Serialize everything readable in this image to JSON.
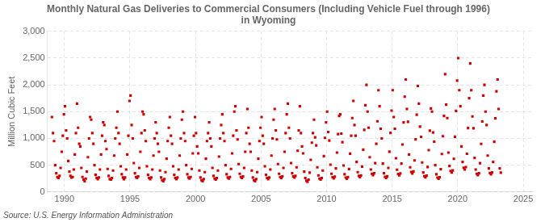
{
  "chart_data": {
    "type": "scatter",
    "title": "Monthly Natural Gas Deliveries to Commercial Consumers (Including Vehicle Fuel through 1996)\nin Wyoming",
    "ylabel": "Million Cubic Feet",
    "source": "Source: U.S. Energy Information Administration",
    "color": "#cc0000",
    "marker": "square",
    "grid": true,
    "xlim": [
      1988.7,
      2025.8
    ],
    "xticks": [
      1990,
      1995,
      2000,
      2005,
      2010,
      2015,
      2020,
      2025
    ],
    "ylim": [
      0,
      3000
    ],
    "yticks": [
      0,
      500,
      {
        "value": 1000,
        "label": "1,000"
      },
      {
        "value": 1500,
        "label": "1,500"
      },
      {
        "value": 2000,
        "label": "2,000"
      },
      {
        "value": 2500,
        "label": "2,500"
      },
      {
        "value": 3000,
        "label": "3,000"
      }
    ],
    "x": [
      1989.0416666666667,
      1989.125,
      1989.2083333333333,
      1989.2916666666667,
      1989.375,
      1989.4583333333333,
      1989.5416666666667,
      1989.625,
      1989.7083333333333,
      1989.7916666666667,
      1989.875,
      1989.9583333333333,
      1990.0416666666667,
      1990.125,
      1990.2083333333333,
      1990.2916666666667,
      1990.375,
      1990.4583333333333,
      1990.5416666666667,
      1990.625,
      1990.7083333333333,
      1990.7916666666667,
      1990.875,
      1990.9583333333333,
      1991.0416666666667,
      1991.125,
      1991.2083333333333,
      1991.2916666666667,
      1991.375,
      1991.4583333333333,
      1991.5416666666667,
      1991.625,
      1991.7083333333333,
      1991.7916666666667,
      1991.875,
      1991.9583333333333,
      1992.0416666666667,
      1992.125,
      1992.2083333333333,
      1992.2916666666667,
      1992.375,
      1992.4583333333333,
      1992.5416666666667,
      1992.625,
      1992.7083333333333,
      1992.7916666666667,
      1992.875,
      1992.9583333333333,
      1993.0416666666667,
      1993.125,
      1993.2083333333333,
      1993.2916666666667,
      1993.375,
      1993.4583333333333,
      1993.5416666666667,
      1993.625,
      1993.7083333333333,
      1993.7916666666667,
      1993.875,
      1993.9583333333333,
      1994.0416666666667,
      1994.125,
      1994.2083333333333,
      1994.2916666666667,
      1994.375,
      1994.4583333333333,
      1994.5416666666667,
      1994.625,
      1994.7083333333333,
      1994.7916666666667,
      1994.875,
      1994.9583333333333,
      1995.0416666666667,
      1995.125,
      1995.2083333333333,
      1995.2916666666667,
      1995.375,
      1995.4583333333333,
      1995.5416666666667,
      1995.625,
      1995.7083333333333,
      1995.7916666666667,
      1995.875,
      1995.9583333333333,
      1996.0416666666667,
      1996.125,
      1996.2083333333333,
      1996.2916666666667,
      1996.375,
      1996.4583333333333,
      1996.5416666666667,
      1996.625,
      1996.7083333333333,
      1996.7916666666667,
      1996.875,
      1996.9583333333333,
      1997.0416666666667,
      1997.125,
      1997.2083333333333,
      1997.2916666666667,
      1997.375,
      1997.4583333333333,
      1997.5416666666667,
      1997.625,
      1997.7083333333333,
      1997.7916666666667,
      1997.875,
      1997.9583333333333,
      1998.0416666666667,
      1998.125,
      1998.2083333333333,
      1998.2916666666667,
      1998.375,
      1998.4583333333333,
      1998.5416666666667,
      1998.625,
      1998.7083333333333,
      1998.7916666666667,
      1998.875,
      1998.9583333333333,
      1999.0416666666667,
      1999.125,
      1999.2083333333333,
      1999.2916666666667,
      1999.375,
      1999.4583333333333,
      1999.5416666666667,
      1999.625,
      1999.7083333333333,
      1999.7916666666667,
      1999.875,
      1999.9583333333333,
      2000.0416666666667,
      2000.125,
      2000.2083333333333,
      2000.2916666666667,
      2000.375,
      2000.4583333333333,
      2000.5416666666667,
      2000.625,
      2000.7083333333333,
      2000.7916666666667,
      2000.875,
      2000.9583333333333,
      2001.0416666666667,
      2001.125,
      2001.2083333333333,
      2001.2916666666667,
      2001.375,
      2001.4583333333333,
      2001.5416666666667,
      2001.625,
      2001.7083333333333,
      2001.7916666666667,
      2001.875,
      2001.9583333333333,
      2002.0416666666667,
      2002.125,
      2002.2083333333333,
      2002.2916666666667,
      2002.375,
      2002.4583333333333,
      2002.5416666666667,
      2002.625,
      2002.7083333333333,
      2002.7916666666667,
      2002.875,
      2002.9583333333333,
      2003.0416666666667,
      2003.125,
      2003.2083333333333,
      2003.2916666666667,
      2003.375,
      2003.4583333333333,
      2003.5416666666667,
      2003.625,
      2003.7083333333333,
      2003.7916666666667,
      2003.875,
      2003.9583333333333,
      2004.0416666666667,
      2004.125,
      2004.2083333333333,
      2004.2916666666667,
      2004.375,
      2004.4583333333333,
      2004.5416666666667,
      2004.625,
      2004.7083333333333,
      2004.7916666666667,
      2004.875,
      2004.9583333333333,
      2005.0416666666667,
      2005.125,
      2005.2083333333333,
      2005.2916666666667,
      2005.375,
      2005.4583333333333,
      2005.5416666666667,
      2005.625,
      2005.7083333333333,
      2005.7916666666667,
      2005.875,
      2005.9583333333333,
      2006.0416666666667,
      2006.125,
      2006.2083333333333,
      2006.2916666666667,
      2006.375,
      2006.4583333333333,
      2006.5416666666667,
      2006.625,
      2006.7083333333333,
      2006.7916666666667,
      2006.875,
      2006.9583333333333,
      2007.0416666666667,
      2007.125,
      2007.2083333333333,
      2007.2916666666667,
      2007.375,
      2007.4583333333333,
      2007.5416666666667,
      2007.625,
      2007.7083333333333,
      2007.7916666666667,
      2007.875,
      2007.9583333333333,
      2008.0416666666667,
      2008.125,
      2008.2083333333333,
      2008.2916666666667,
      2008.375,
      2008.4583333333333,
      2008.5416666666667,
      2008.625,
      2008.7083333333333,
      2008.7916666666667,
      2008.875,
      2008.9583333333333,
      2009.0416666666667,
      2009.125,
      2009.2083333333333,
      2009.2916666666667,
      2009.375,
      2009.4583333333333,
      2009.5416666666667,
      2009.625,
      2009.7083333333333,
      2009.7916666666667,
      2009.875,
      2009.9583333333333,
      2010.0416666666667,
      2010.125,
      2010.2083333333333,
      2010.2916666666667,
      2010.375,
      2010.4583333333333,
      2010.5416666666667,
      2010.625,
      2010.7083333333333,
      2010.7916666666667,
      2010.875,
      2010.9583333333333,
      2011.0416666666667,
      2011.125,
      2011.2083333333333,
      2011.2916666666667,
      2011.375,
      2011.4583333333333,
      2011.5416666666667,
      2011.625,
      2011.7083333333333,
      2011.7916666666667,
      2011.875,
      2011.9583333333333,
      2012.0416666666667,
      2012.125,
      2012.2083333333333,
      2012.2916666666667,
      2012.375,
      2012.4583333333333,
      2012.5416666666667,
      2012.625,
      2012.7083333333333,
      2012.7916666666667,
      2012.875,
      2012.9583333333333,
      2013.0416666666667,
      2013.125,
      2013.2083333333333,
      2013.2916666666667,
      2013.375,
      2013.4583333333333,
      2013.5416666666667,
      2013.625,
      2013.7083333333333,
      2013.7916666666667,
      2013.875,
      2013.9583333333333,
      2014.0416666666667,
      2014.125,
      2014.2083333333333,
      2014.2916666666667,
      2014.375,
      2014.4583333333333,
      2014.5416666666667,
      2014.625,
      2014.7083333333333,
      2014.7916666666667,
      2014.875,
      2014.9583333333333,
      2015.0416666666667,
      2015.125,
      2015.2083333333333,
      2015.2916666666667,
      2015.375,
      2015.4583333333333,
      2015.5416666666667,
      2015.625,
      2015.7083333333333,
      2015.7916666666667,
      2015.875,
      2015.9583333333333,
      2016.0416666666667,
      2016.125,
      2016.2083333333333,
      2016.2916666666667,
      2016.375,
      2016.4583333333333,
      2016.5416666666667,
      2016.625,
      2016.7083333333333,
      2016.7916666666667,
      2016.875,
      2016.9583333333333,
      2017.0416666666667,
      2017.125,
      2017.2083333333333,
      2017.2916666666667,
      2017.375,
      2017.4583333333333,
      2017.5416666666667,
      2017.625,
      2017.7083333333333,
      2017.7916666666667,
      2017.875,
      2017.9583333333333,
      2018.0416666666667,
      2018.125,
      2018.2083333333333,
      2018.2916666666667,
      2018.375,
      2018.4583333333333,
      2018.5416666666667,
      2018.625,
      2018.7083333333333,
      2018.7916666666667,
      2018.875,
      2018.9583333333333,
      2019.0416666666667,
      2019.125,
      2019.2083333333333,
      2019.2916666666667,
      2019.375,
      2019.4583333333333,
      2019.5416666666667,
      2019.625,
      2019.7083333333333,
      2019.7916666666667,
      2019.875,
      2019.9583333333333,
      2020.0416666666667,
      2020.125,
      2020.2083333333333,
      2020.2916666666667,
      2020.375,
      2020.4583333333333,
      2020.5416666666667,
      2020.625,
      2020.7083333333333,
      2020.7916666666667,
      2020.875,
      2020.9583333333333,
      2021.0416666666667,
      2021.125,
      2021.2083333333333,
      2021.2916666666667,
      2021.375,
      2021.4583333333333,
      2021.5416666666667,
      2021.625,
      2021.7083333333333,
      2021.7916666666667,
      2021.875,
      2021.9583333333333,
      2022.0416666666667,
      2022.125,
      2022.2083333333333,
      2022.2916666666667,
      2022.375,
      2022.4583333333333,
      2022.5416666666667,
      2022.625,
      2022.7083333333333,
      2022.7916666666667,
      2022.875,
      2022.9583333333333,
      2023.0416666666667,
      2023.125,
      2023.2083333333333,
      2023.2916666666667
    ],
    "values": [
      1400,
      1100,
      950,
      500,
      350,
      280,
      260,
      300,
      450,
      750,
      1050,
      1450,
      1600,
      1150,
      1000,
      580,
      380,
      300,
      270,
      280,
      420,
      700,
      1100,
      1650,
      1200,
      900,
      850,
      450,
      280,
      230,
      200,
      250,
      380,
      650,
      1000,
      1400,
      1350,
      1100,
      900,
      500,
      320,
      260,
      240,
      270,
      420,
      700,
      1050,
      1300,
      1250,
      950,
      800,
      430,
      300,
      240,
      230,
      260,
      400,
      680,
      1000,
      1200,
      1500,
      1100,
      900,
      480,
      330,
      270,
      240,
      270,
      420,
      700,
      1050,
      1700,
      1800,
      1250,
      1000,
      540,
      350,
      280,
      260,
      290,
      450,
      750,
      1100,
      1500,
      1450,
      1150,
      950,
      480,
      320,
      260,
      240,
      270,
      420,
      680,
      1000,
      1300,
      1100,
      900,
      750,
      400,
      270,
      220,
      200,
      240,
      370,
      620,
      950,
      1200,
      1400,
      1050,
      900,
      480,
      320,
      260,
      240,
      270,
      420,
      680,
      1000,
      1350,
      1500,
      1100,
      950,
      500,
      330,
      270,
      250,
      280,
      430,
      720,
      1050,
      1400,
      1100,
      850,
      720,
      400,
      270,
      220,
      200,
      240,
      370,
      620,
      950,
      1100,
      1300,
      1000,
      850,
      450,
      300,
      250,
      230,
      260,
      400,
      660,
      1000,
      1250,
      1450,
      1100,
      950,
      500,
      330,
      270,
      250,
      280,
      430,
      720,
      1050,
      1500,
      1600,
      1150,
      980,
      520,
      340,
      280,
      260,
      290,
      450,
      750,
      1100,
      1550,
      1200,
      900,
      750,
      400,
      270,
      220,
      200,
      240,
      370,
      620,
      950,
      1200,
      1400,
      1050,
      900,
      480,
      320,
      260,
      240,
      270,
      420,
      680,
      1000,
      1350,
      1550,
      1150,
      980,
      520,
      340,
      280,
      260,
      290,
      450,
      750,
      1100,
      1450,
      1650,
      1200,
      1000,
      540,
      350,
      290,
      270,
      300,
      460,
      770,
      1150,
      1600,
      1100,
      850,
      720,
      380,
      260,
      210,
      190,
      230,
      360,
      600,
      920,
      1100,
      1350,
      1020,
      870,
      460,
      310,
      250,
      230,
      260,
      400,
      670,
      1010,
      1300,
      1500,
      1120,
      960,
      510,
      340,
      275,
      255,
      285,
      440,
      735,
      1080,
      1420,
      1450,
      1090,
      930,
      495,
      330,
      268,
      248,
      278,
      428,
      715,
      1050,
      1380,
      1700,
      1250,
      1050,
      560,
      370,
      300,
      278,
      308,
      473,
      790,
      1160,
      1620,
      2000,
      1500,
      1200,
      650,
      420,
      340,
      315,
      350,
      538,
      900,
      1320,
      1900,
      1600,
      1180,
      1000,
      530,
      350,
      283,
      263,
      293,
      450,
      752,
      1103,
      1520,
      1900,
      1400,
      1180,
      630,
      415,
      336,
      311,
      345,
      530,
      886,
      1299,
      1780,
      2100,
      1550,
      1310,
      700,
      460,
      373,
      345,
      383,
      588,
      983,
      1442,
      1980,
      1650,
      1220,
      1030,
      550,
      364,
      295,
      273,
      304,
      467,
      780,
      1144,
      1560,
      1500,
      1110,
      940,
      500,
      331,
      268,
      248,
      276,
      424,
      709,
      1040,
      1420,
      2200,
      1630,
      1380,
      735,
      485,
      392,
      363,
      402,
      618,
      1032,
      1514,
      2080,
      2500,
      1900,
      1600,
      850,
      560,
      453,
      420,
      465,
      714,
      1194,
      1751,
      2400,
      1900,
      1410,
      1190,
      635,
      420,
      340,
      315,
      350,
      537,
      897,
      1316,
      1800,
      2000,
      1500,
      1250,
      680,
      440,
      356,
      330,
      365,
      561,
      937,
      1374,
      1880,
      2100,
      1550,
      440,
      360
    ]
  }
}
